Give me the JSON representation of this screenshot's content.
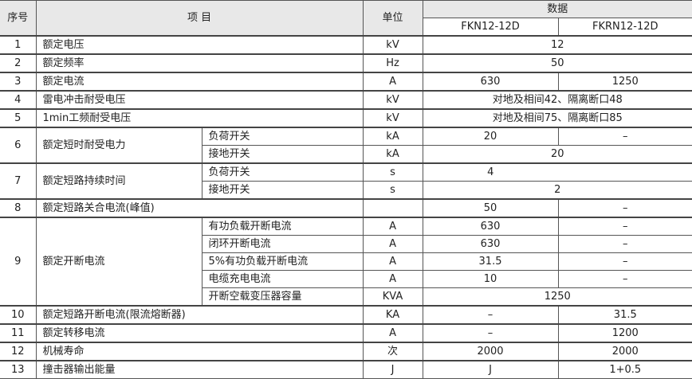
{
  "header": {
    "no": "序号",
    "item": "项 目",
    "unit": "单位",
    "data": "数据",
    "model1": "FKN12-12D",
    "model2": "FKRN12-12D"
  },
  "rows": [
    {
      "no": "1",
      "item": "额定电压",
      "unit": "kV",
      "value": "12"
    },
    {
      "no": "2",
      "item": "额定频率",
      "unit": "Hz",
      "value": "50"
    },
    {
      "no": "3",
      "item": "额定电流",
      "unit": "A",
      "v1": "630",
      "v2": "1250"
    },
    {
      "no": "4",
      "item": "雷电冲击耐受电压",
      "unit": "kV",
      "value": "对地及相间42、隔离断口48"
    },
    {
      "no": "5",
      "item": "1min工频耐受电压",
      "unit": "kV",
      "value": "对地及相间75、隔离断口85"
    },
    {
      "no": "6",
      "item": "额定短时耐受电力",
      "subs": [
        {
          "sub": "负荷开关",
          "unit": "kA",
          "v1": "20",
          "v2": "–"
        },
        {
          "sub": "接地开关",
          "unit": "kA",
          "value": "20"
        }
      ]
    },
    {
      "no": "7",
      "item": "额定短路持续时间",
      "subs": [
        {
          "sub": "负荷开关",
          "unit": "s",
          "v1": "4",
          "v2": ""
        },
        {
          "sub": "接地开关",
          "unit": "s",
          "value": "2"
        }
      ]
    },
    {
      "no": "8",
      "item": "额定短路关合电流(峰值)",
      "unit": "",
      "v1": "50",
      "v2": "–"
    },
    {
      "no": "9",
      "item": "额定开断电流",
      "subs": [
        {
          "sub": "有功负载开断电流",
          "unit": "A",
          "v1": "630",
          "v2": "–"
        },
        {
          "sub": "闭环开断电流",
          "unit": "A",
          "v1": "630",
          "v2": "–"
        },
        {
          "sub": "5%有功负载开断电流",
          "unit": "A",
          "v1": "31.5",
          "v2": "–"
        },
        {
          "sub": "电缆充电电流",
          "unit": "A",
          "v1": "10",
          "v2": "–"
        },
        {
          "sub": "开断空载变压器容量",
          "unit": "KVA",
          "value": "1250"
        }
      ]
    },
    {
      "no": "10",
      "item": "额定短路开断电流(限流熔断器)",
      "unit": "KA",
      "v1": "–",
      "v2": "31.5"
    },
    {
      "no": "11",
      "item": "额定转移电流",
      "unit": "A",
      "v1": "–",
      "v2": "1200"
    },
    {
      "no": "12",
      "item": "机械寿命",
      "unit": "次",
      "v1": "2000",
      "v2": "2000"
    },
    {
      "no": "13",
      "item": "撞击器输出能量",
      "unit": "J",
      "v1": "J",
      "v2": "1+0.5"
    }
  ]
}
